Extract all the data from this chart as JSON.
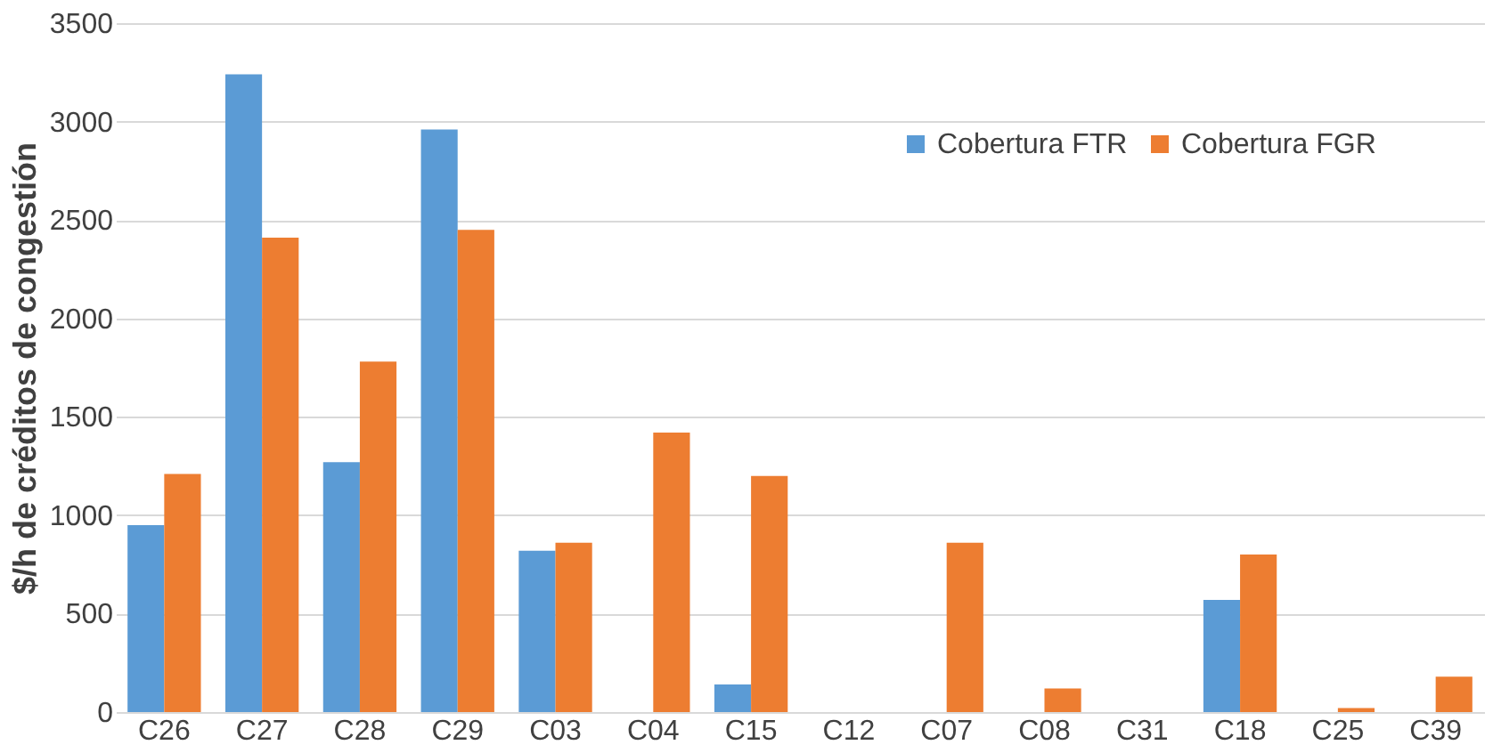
{
  "chart_data": {
    "type": "bar",
    "ylabel": "$/h de créditos de congestión",
    "categories": [
      "C26",
      "C27",
      "C28",
      "C29",
      "C03",
      "C04",
      "C15",
      "C12",
      "C07",
      "C08",
      "C31",
      "C18",
      "C25",
      "C39"
    ],
    "series": [
      {
        "name": "Cobertura FTR",
        "color": "#5b9bd5",
        "values": [
          950,
          3240,
          1270,
          2960,
          820,
          0,
          140,
          0,
          0,
          0,
          0,
          570,
          0,
          0
        ]
      },
      {
        "name": "Cobertura FGR",
        "color": "#ed7d31",
        "values": [
          1210,
          2410,
          1780,
          2450,
          860,
          1420,
          1200,
          0,
          860,
          120,
          0,
          800,
          20,
          180
        ]
      }
    ],
    "ylim": [
      0,
      3500
    ],
    "yticks": [
      0,
      500,
      1000,
      1500,
      2000,
      2500,
      3000,
      3500
    ],
    "grid": "y",
    "legend": "top right"
  }
}
